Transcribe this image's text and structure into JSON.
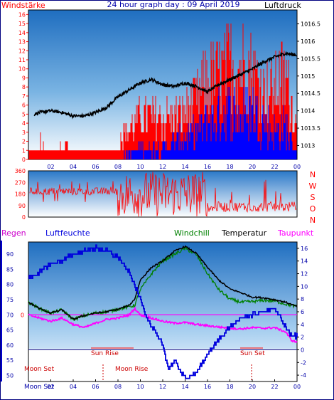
{
  "header": {
    "left_label": "Windstärke",
    "title": "24 hour graph day : 09 April 2019",
    "right_label": "Luftdruck"
  },
  "compass": [
    "N",
    "W",
    "S",
    "O",
    "N"
  ],
  "bottom_header": {
    "regen": "Regen",
    "luftfeuchte": "Luftfeuchte",
    "windchill": "Windchill",
    "temperatur": "Temperatur",
    "taupunkt": "Taupunkt"
  },
  "events": {
    "sun_rise": "Sun Rise",
    "sun_set": "Sun Set",
    "moon_set": "Moon Set",
    "moon_rise": "Moon Rise",
    "moon_set_bottom": "Moon Set"
  },
  "colors": {
    "wind": "#ff0000",
    "gust": "#0000ff",
    "pressure": "#000000",
    "humidity": "#0000dd",
    "windchill": "#008000",
    "temperature": "#000000",
    "dewpoint": "#ff00ff",
    "header_blue": "#0000aa"
  },
  "chart_data": [
    {
      "type": "line",
      "name": "wind-pressure",
      "x_ticks": [
        "02",
        "04",
        "06",
        "08",
        "10",
        "12",
        "14",
        "16",
        "18",
        "20",
        "22",
        "00"
      ],
      "y_left_ticks": [
        "0",
        "1",
        "2",
        "3",
        "4",
        "5",
        "6",
        "7",
        "8",
        "9",
        "10",
        "11",
        "12",
        "13",
        "14",
        "15",
        "16"
      ],
      "y_right_ticks": [
        "1013",
        "1013.5",
        "1014",
        "1014.5",
        "1015",
        "1015.5",
        "1016",
        "1016.5"
      ],
      "ylim_left": [
        0,
        16.5
      ],
      "ylim_right": [
        1012.6,
        1016.9
      ],
      "xlim": [
        0,
        24
      ],
      "pressure": {
        "x": [
          0.5,
          1,
          2,
          3,
          4,
          5,
          6,
          7,
          8,
          9,
          10,
          11,
          12,
          13,
          14,
          15,
          16,
          17,
          18,
          19,
          20,
          21,
          22,
          23,
          24
        ],
        "y": [
          1013.9,
          1013.95,
          1014.0,
          1013.95,
          1013.85,
          1013.85,
          1013.95,
          1014.1,
          1014.4,
          1014.6,
          1014.8,
          1014.9,
          1014.75,
          1014.7,
          1014.8,
          1014.7,
          1014.55,
          1014.75,
          1014.9,
          1015.05,
          1015.2,
          1015.4,
          1015.55,
          1015.65,
          1015.6
        ]
      },
      "wind_envelope": {
        "x": [
          0,
          1,
          2,
          3,
          4,
          5,
          6,
          7,
          8,
          8.5,
          9,
          10,
          11,
          12,
          13,
          14,
          15,
          16,
          17,
          18,
          19,
          20,
          21,
          22,
          23,
          24
        ],
        "y": [
          1,
          3,
          1,
          2,
          1,
          1,
          1,
          1,
          1,
          4,
          5,
          7,
          7,
          7,
          7,
          8,
          10,
          13,
          14,
          16,
          16,
          15,
          11,
          12,
          14,
          5
        ]
      },
      "gust_envelope": {
        "x": [
          0,
          8,
          9,
          10,
          11,
          12,
          13,
          14,
          15,
          16,
          17,
          18,
          19,
          20,
          21,
          22,
          23,
          24
        ],
        "y": [
          0,
          0,
          1,
          2,
          2,
          2,
          3,
          4,
          5,
          7,
          8,
          9,
          8,
          9,
          7,
          5,
          6,
          1
        ]
      }
    },
    {
      "type": "scatter",
      "name": "wind-direction",
      "y_ticks": [
        "0",
        "90",
        "180",
        "270",
        "360"
      ],
      "ylim": [
        0,
        360
      ],
      "xlim": [
        0,
        24
      ]
    },
    {
      "type": "line",
      "name": "temperature-humidity",
      "x_ticks": [
        "02",
        "04",
        "06",
        "08",
        "10",
        "12",
        "14",
        "16",
        "18",
        "20",
        "22",
        "00"
      ],
      "y_left_ticks": [
        "50",
        "55",
        "60",
        "65",
        "70",
        "75",
        "80",
        "85",
        "90"
      ],
      "y_right_ticks": [
        "-4",
        "-2",
        "0",
        "2",
        "4",
        "6",
        "8",
        "10",
        "12",
        "14",
        "16"
      ],
      "ylim_left": [
        48,
        94
      ],
      "ylim_right": [
        -5,
        17
      ],
      "xlim": [
        0,
        24
      ],
      "humidity": {
        "x": [
          0,
          1,
          2,
          3,
          4,
          5,
          6,
          7,
          8,
          9,
          10,
          10.5,
          11,
          12,
          12.5,
          13,
          14,
          15,
          16,
          17,
          18,
          19,
          20,
          21,
          22,
          23,
          23.5,
          24
        ],
        "y": [
          82,
          84,
          87,
          88,
          90,
          91,
          92,
          91,
          89,
          84,
          75,
          70,
          66,
          60,
          52,
          55,
          49,
          51,
          57,
          62,
          66,
          69,
          70,
          71,
          72,
          66,
          63,
          63
        ]
      },
      "temperature": {
        "x": [
          0,
          1,
          2,
          3,
          4,
          5,
          6,
          7,
          8,
          9,
          9.5,
          10,
          11,
          12,
          13,
          14,
          15,
          16,
          17,
          18,
          19,
          20,
          21,
          22,
          23,
          24
        ],
        "y": [
          7.5,
          6.5,
          5.8,
          6.3,
          4.8,
          5.4,
          5.8,
          6.0,
          6.4,
          7.0,
          8.0,
          11,
          13,
          14,
          15.5,
          16.3,
          15.2,
          13,
          11,
          9.6,
          9.0,
          8.3,
          8.2,
          7.9,
          7.5,
          6.8
        ]
      },
      "windchill": {
        "x": [
          0,
          1,
          2,
          3,
          4,
          5,
          6,
          7,
          8,
          9,
          9.5,
          10,
          11,
          12,
          13,
          14,
          15,
          16,
          17,
          18,
          19,
          20,
          21,
          22,
          23,
          24
        ],
        "y": [
          7.5,
          6.5,
          5.8,
          6.3,
          4.8,
          5.4,
          5.8,
          6.0,
          6.4,
          6.8,
          7.0,
          9.5,
          12,
          14,
          15,
          16,
          15,
          12,
          9.5,
          8.0,
          7.5,
          7.6,
          7.8,
          7.7,
          7.2,
          6.8
        ]
      },
      "dewpoint": {
        "x": [
          0,
          1,
          2,
          3,
          4,
          5,
          6,
          7,
          8,
          9,
          9.5,
          10,
          11,
          12,
          13,
          14,
          15,
          16,
          17,
          18,
          19,
          20,
          21,
          22,
          23,
          23.5,
          24
        ],
        "y": [
          5.5,
          5.0,
          4.5,
          5.0,
          4.0,
          3.5,
          4.2,
          4.8,
          5.0,
          5.5,
          6.5,
          5.5,
          5.0,
          4.5,
          4.2,
          4.3,
          4.0,
          3.8,
          3.6,
          3.4,
          3.3,
          3.5,
          3.4,
          3.5,
          2.8,
          1.5,
          1.2
        ]
      }
    }
  ]
}
